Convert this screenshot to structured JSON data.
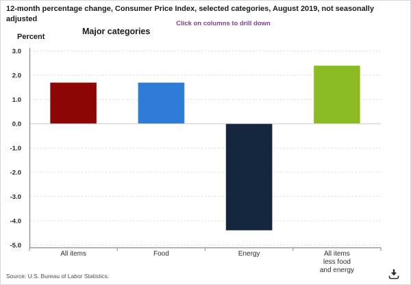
{
  "header": {
    "title": "12-month percentage change, Consumer Price Index, selected categories, August 2019, not seasonally adjusted",
    "drill_note": "Click on columns to drill down"
  },
  "chart_data": {
    "type": "bar",
    "title": "Major categories",
    "ylabel": "Percent",
    "categories": [
      "All items",
      "Food",
      "Energy",
      "All items less food and energy"
    ],
    "category_label_lines": [
      [
        "All items"
      ],
      [
        "Food"
      ],
      [
        "Energy"
      ],
      [
        "All items",
        "less food",
        "and energy"
      ]
    ],
    "values": [
      1.7,
      1.7,
      -4.4,
      2.4
    ],
    "bar_colors": [
      "#8e0505",
      "#2f7cd8",
      "#13263d",
      "#8bbb23"
    ],
    "ylim": [
      -5.0,
      3.0
    ],
    "ytick_step": 1.0,
    "ytick_labels": [
      "3.0",
      "2.0",
      "1.0",
      "0.0",
      "-1.0",
      "-2.0",
      "-3.0",
      "-4.0",
      "-5.0"
    ],
    "grid": "horizontal-dashed",
    "legend": "none",
    "bars_clickable": true
  },
  "footer": {
    "source": "Source: U.S. Bureau of Labor Statistics."
  },
  "icons": {
    "download": "download-icon"
  },
  "colors": {
    "note_purple": "#7b3f98",
    "gridline": "#dadada",
    "zero_line": "#c6c6c6",
    "axis": "#999999",
    "title_text": "#1a1a1a"
  }
}
